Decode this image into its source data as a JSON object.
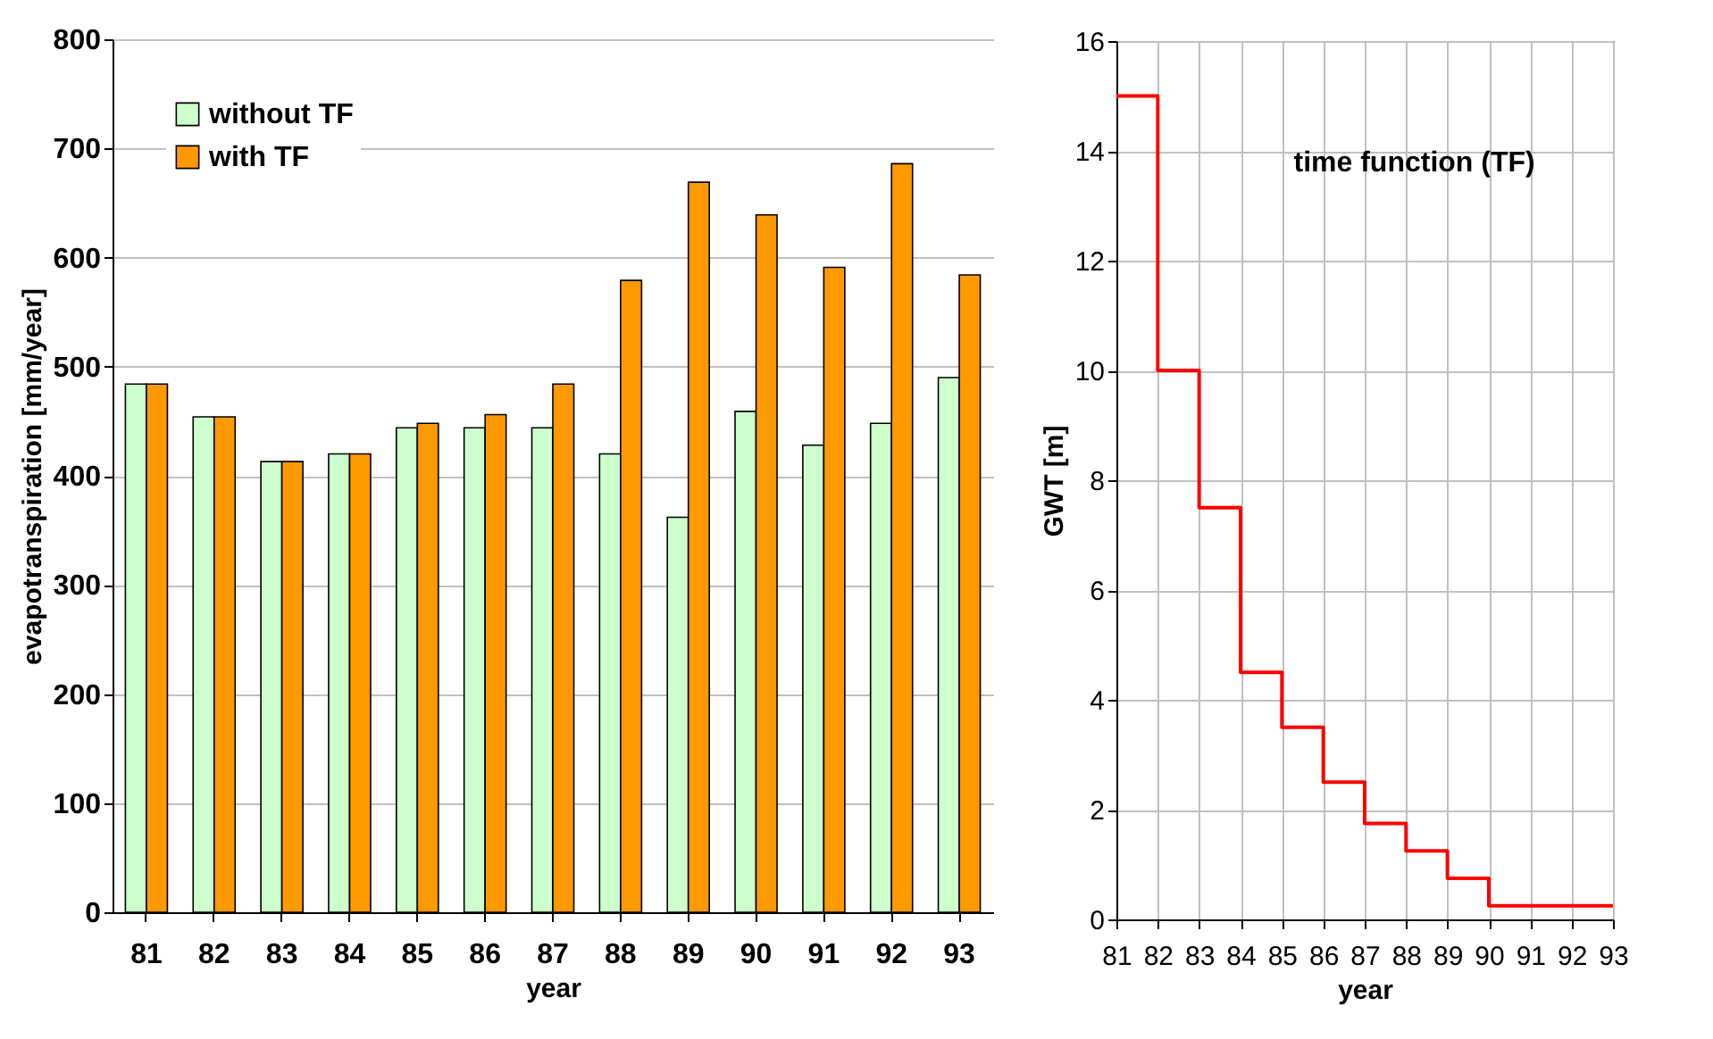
{
  "chart_data": [
    {
      "type": "bar",
      "xlabel": "year",
      "ylabel": "evapotranspiration [mm/year]",
      "categories": [
        "81",
        "82",
        "83",
        "84",
        "85",
        "86",
        "87",
        "88",
        "89",
        "90",
        "91",
        "92",
        "93"
      ],
      "series": [
        {
          "name": "without TF",
          "color": "#ccffcc",
          "values": [
            484,
            454,
            413,
            420,
            444,
            444,
            444,
            420,
            362,
            459,
            428,
            448,
            490
          ]
        },
        {
          "name": "with TF",
          "color": "#ff9900",
          "values": [
            484,
            454,
            413,
            420,
            448,
            456,
            484,
            579,
            669,
            639,
            591,
            686,
            584
          ]
        }
      ],
      "ylim": [
        0,
        800
      ],
      "yticks": [
        0,
        100,
        200,
        300,
        400,
        500,
        600,
        700,
        800
      ],
      "grid": "y",
      "legend": "top left"
    },
    {
      "type": "step",
      "xlabel": "year",
      "ylabel": "GWT [m]",
      "annotations": [
        "time function (TF)"
      ],
      "x": [
        81,
        82,
        83,
        84,
        85,
        86,
        87,
        88,
        89,
        90,
        91,
        92,
        93
      ],
      "series": [
        {
          "color": "#ff0000",
          "values": [
            15,
            10,
            7.5,
            4.5,
            3.5,
            2.5,
            1.75,
            1.25,
            0.75,
            0.25,
            0.25,
            0.25,
            0.25
          ]
        }
      ],
      "xlim": [
        81,
        93
      ],
      "xticks": [
        81,
        82,
        83,
        84,
        85,
        86,
        87,
        88,
        89,
        90,
        91,
        92,
        93
      ],
      "ylim": [
        0,
        16
      ],
      "yticks": [
        0,
        2,
        4,
        6,
        8,
        10,
        12,
        14,
        16
      ],
      "grid": true
    }
  ]
}
